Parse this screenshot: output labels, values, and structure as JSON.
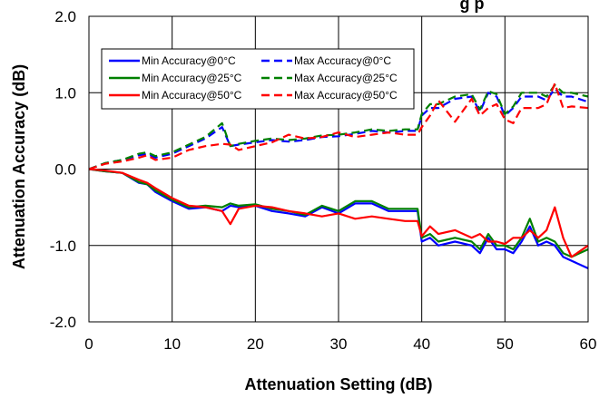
{
  "chart_data": {
    "type": "line",
    "title": "",
    "title_fragment_visible": "g    p",
    "xlabel": "Attenuation Setting (dB)",
    "ylabel": "Attenuation Accuracy (dB)",
    "xlim": [
      0,
      60
    ],
    "ylim": [
      -2.0,
      2.0
    ],
    "xticks": [
      "0",
      "10",
      "20",
      "30",
      "40",
      "50",
      "60"
    ],
    "yticks": [
      "2.0",
      "1.0",
      "0.0",
      "-1.0",
      "-2.0"
    ],
    "grid": true,
    "legend_position": "top-left",
    "x": [
      0,
      2,
      4,
      6,
      7,
      8,
      10,
      12,
      14,
      16,
      17,
      18,
      20,
      22,
      24,
      26,
      28,
      30,
      32,
      34,
      36,
      38,
      39.5,
      40,
      41,
      42,
      44,
      46,
      47,
      48,
      49,
      50,
      51,
      52,
      53,
      54,
      55,
      56,
      57,
      58,
      60
    ],
    "series": [
      {
        "name": "Min Accuracy@0°C",
        "color": "#0000ff",
        "dash": "solid",
        "values": [
          0.0,
          -0.03,
          -0.05,
          -0.18,
          -0.2,
          -0.3,
          -0.42,
          -0.52,
          -0.5,
          -0.55,
          -0.48,
          -0.5,
          -0.48,
          -0.55,
          -0.58,
          -0.62,
          -0.5,
          -0.58,
          -0.45,
          -0.45,
          -0.55,
          -0.55,
          -0.55,
          -0.95,
          -0.9,
          -1.0,
          -0.95,
          -1.0,
          -1.1,
          -0.9,
          -1.05,
          -1.05,
          -1.1,
          -0.95,
          -0.75,
          -1.0,
          -0.95,
          -1.0,
          -1.15,
          -1.2,
          -1.3
        ]
      },
      {
        "name": "Max Accuracy@0°C",
        "color": "#0000ff",
        "dash": "dash",
        "values": [
          0.0,
          0.08,
          0.12,
          0.18,
          0.2,
          0.15,
          0.2,
          0.3,
          0.4,
          0.55,
          0.3,
          0.32,
          0.35,
          0.38,
          0.36,
          0.38,
          0.42,
          0.43,
          0.46,
          0.5,
          0.48,
          0.5,
          0.5,
          0.7,
          0.8,
          0.8,
          0.92,
          0.95,
          0.75,
          1.0,
          0.95,
          0.7,
          0.8,
          0.95,
          0.95,
          0.95,
          0.9,
          1.05,
          0.95,
          0.95,
          0.88
        ]
      },
      {
        "name": "Min Accuracy@25°C",
        "color": "#008000",
        "dash": "solid",
        "values": [
          0.0,
          -0.03,
          -0.05,
          -0.17,
          -0.2,
          -0.28,
          -0.4,
          -0.5,
          -0.48,
          -0.5,
          -0.45,
          -0.48,
          -0.46,
          -0.52,
          -0.55,
          -0.6,
          -0.48,
          -0.55,
          -0.42,
          -0.42,
          -0.52,
          -0.52,
          -0.52,
          -0.9,
          -0.85,
          -0.95,
          -0.9,
          -0.95,
          -1.05,
          -0.85,
          -1.0,
          -1.0,
          -1.05,
          -0.9,
          -0.65,
          -0.95,
          -0.9,
          -0.95,
          -1.1,
          -1.15,
          -1.05
        ]
      },
      {
        "name": "Max Accuracy@25°C",
        "color": "#008000",
        "dash": "dash",
        "values": [
          0.0,
          0.08,
          0.12,
          0.2,
          0.22,
          0.17,
          0.22,
          0.32,
          0.42,
          0.6,
          0.3,
          0.33,
          0.37,
          0.4,
          0.38,
          0.4,
          0.44,
          0.45,
          0.48,
          0.52,
          0.5,
          0.52,
          0.52,
          0.72,
          0.85,
          0.85,
          0.95,
          0.98,
          0.78,
          1.02,
          0.98,
          0.72,
          0.82,
          1.0,
          1.0,
          1.0,
          0.95,
          1.1,
          1.0,
          1.0,
          0.95
        ]
      },
      {
        "name": "Min Accuracy@50°C",
        "color": "#ff0000",
        "dash": "solid",
        "values": [
          0.0,
          -0.02,
          -0.05,
          -0.14,
          -0.18,
          -0.25,
          -0.38,
          -0.48,
          -0.5,
          -0.55,
          -0.72,
          -0.52,
          -0.48,
          -0.5,
          -0.55,
          -0.58,
          -0.62,
          -0.58,
          -0.65,
          -0.62,
          -0.65,
          -0.68,
          -0.68,
          -0.88,
          -0.75,
          -0.85,
          -0.8,
          -0.9,
          -0.85,
          -0.95,
          -0.95,
          -0.98,
          -0.9,
          -0.9,
          -0.8,
          -0.9,
          -0.8,
          -0.5,
          -0.9,
          -1.15,
          -1.0
        ]
      },
      {
        "name": "Max Accuracy@50°C",
        "color": "#ff0000",
        "dash": "dash",
        "values": [
          0.0,
          0.07,
          0.1,
          0.15,
          0.18,
          0.12,
          0.15,
          0.25,
          0.3,
          0.33,
          0.32,
          0.25,
          0.3,
          0.35,
          0.45,
          0.4,
          0.42,
          0.48,
          0.42,
          0.45,
          0.48,
          0.45,
          0.45,
          0.55,
          0.7,
          0.9,
          0.62,
          0.92,
          0.7,
          0.8,
          0.85,
          0.65,
          0.6,
          0.8,
          0.8,
          0.8,
          0.85,
          1.12,
          0.8,
          0.82,
          0.8
        ]
      }
    ]
  }
}
